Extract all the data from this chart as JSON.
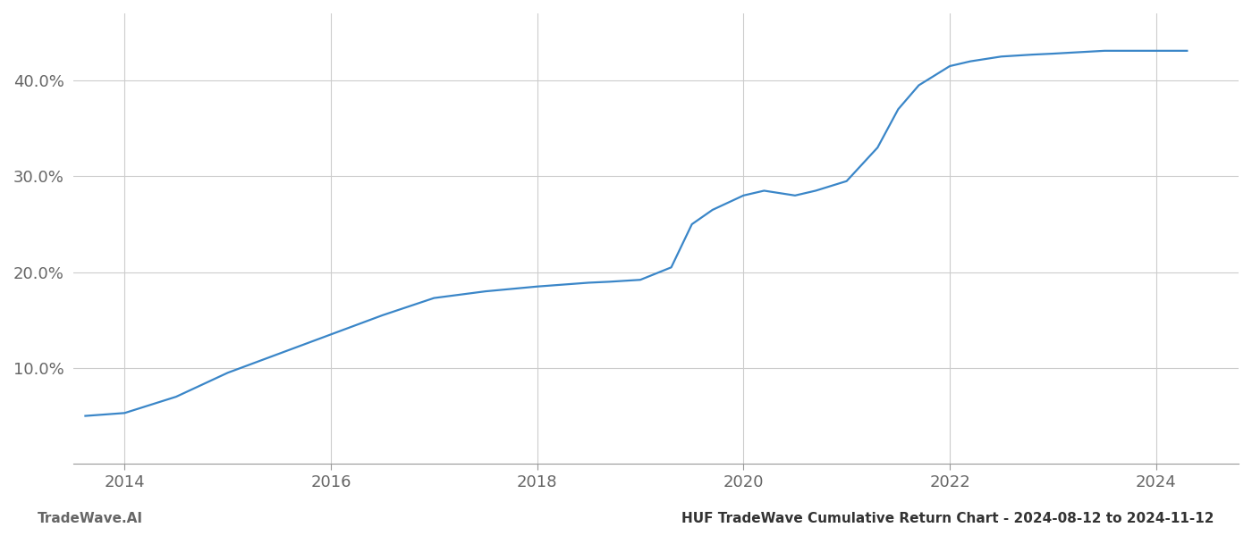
{
  "title": "",
  "footer_left": "TradeWave.AI",
  "footer_right": "HUF TradeWave Cumulative Return Chart - 2024-08-12 to 2024-11-12",
  "line_color": "#3a86c8",
  "background_color": "#ffffff",
  "grid_color": "#cccccc",
  "text_color": "#666666",
  "x_years": [
    2013.62,
    2014.0,
    2014.5,
    2015.0,
    2015.5,
    2016.0,
    2016.5,
    2017.0,
    2017.5,
    2018.0,
    2018.5,
    2018.7,
    2019.0,
    2019.3,
    2019.5,
    2019.7,
    2020.0,
    2020.2,
    2020.5,
    2020.7,
    2021.0,
    2021.3,
    2021.5,
    2021.7,
    2022.0,
    2022.2,
    2022.5,
    2022.8,
    2023.0,
    2023.5,
    2024.0,
    2024.3
  ],
  "y_values": [
    5.0,
    5.3,
    7.0,
    9.5,
    11.5,
    13.5,
    15.5,
    17.3,
    18.0,
    18.5,
    18.9,
    19.0,
    19.2,
    20.5,
    25.0,
    26.5,
    28.0,
    28.5,
    28.0,
    28.5,
    29.5,
    33.0,
    37.0,
    39.5,
    41.5,
    42.0,
    42.5,
    42.7,
    42.8,
    43.1,
    43.1,
    43.1
  ],
  "xlim": [
    2013.5,
    2024.8
  ],
  "ylim": [
    0,
    47
  ],
  "yticks": [
    10.0,
    20.0,
    30.0,
    40.0
  ],
  "xticks": [
    2014,
    2016,
    2018,
    2020,
    2022,
    2024
  ],
  "footer_fontsize": 11,
  "tick_fontsize": 13,
  "line_width": 1.6
}
